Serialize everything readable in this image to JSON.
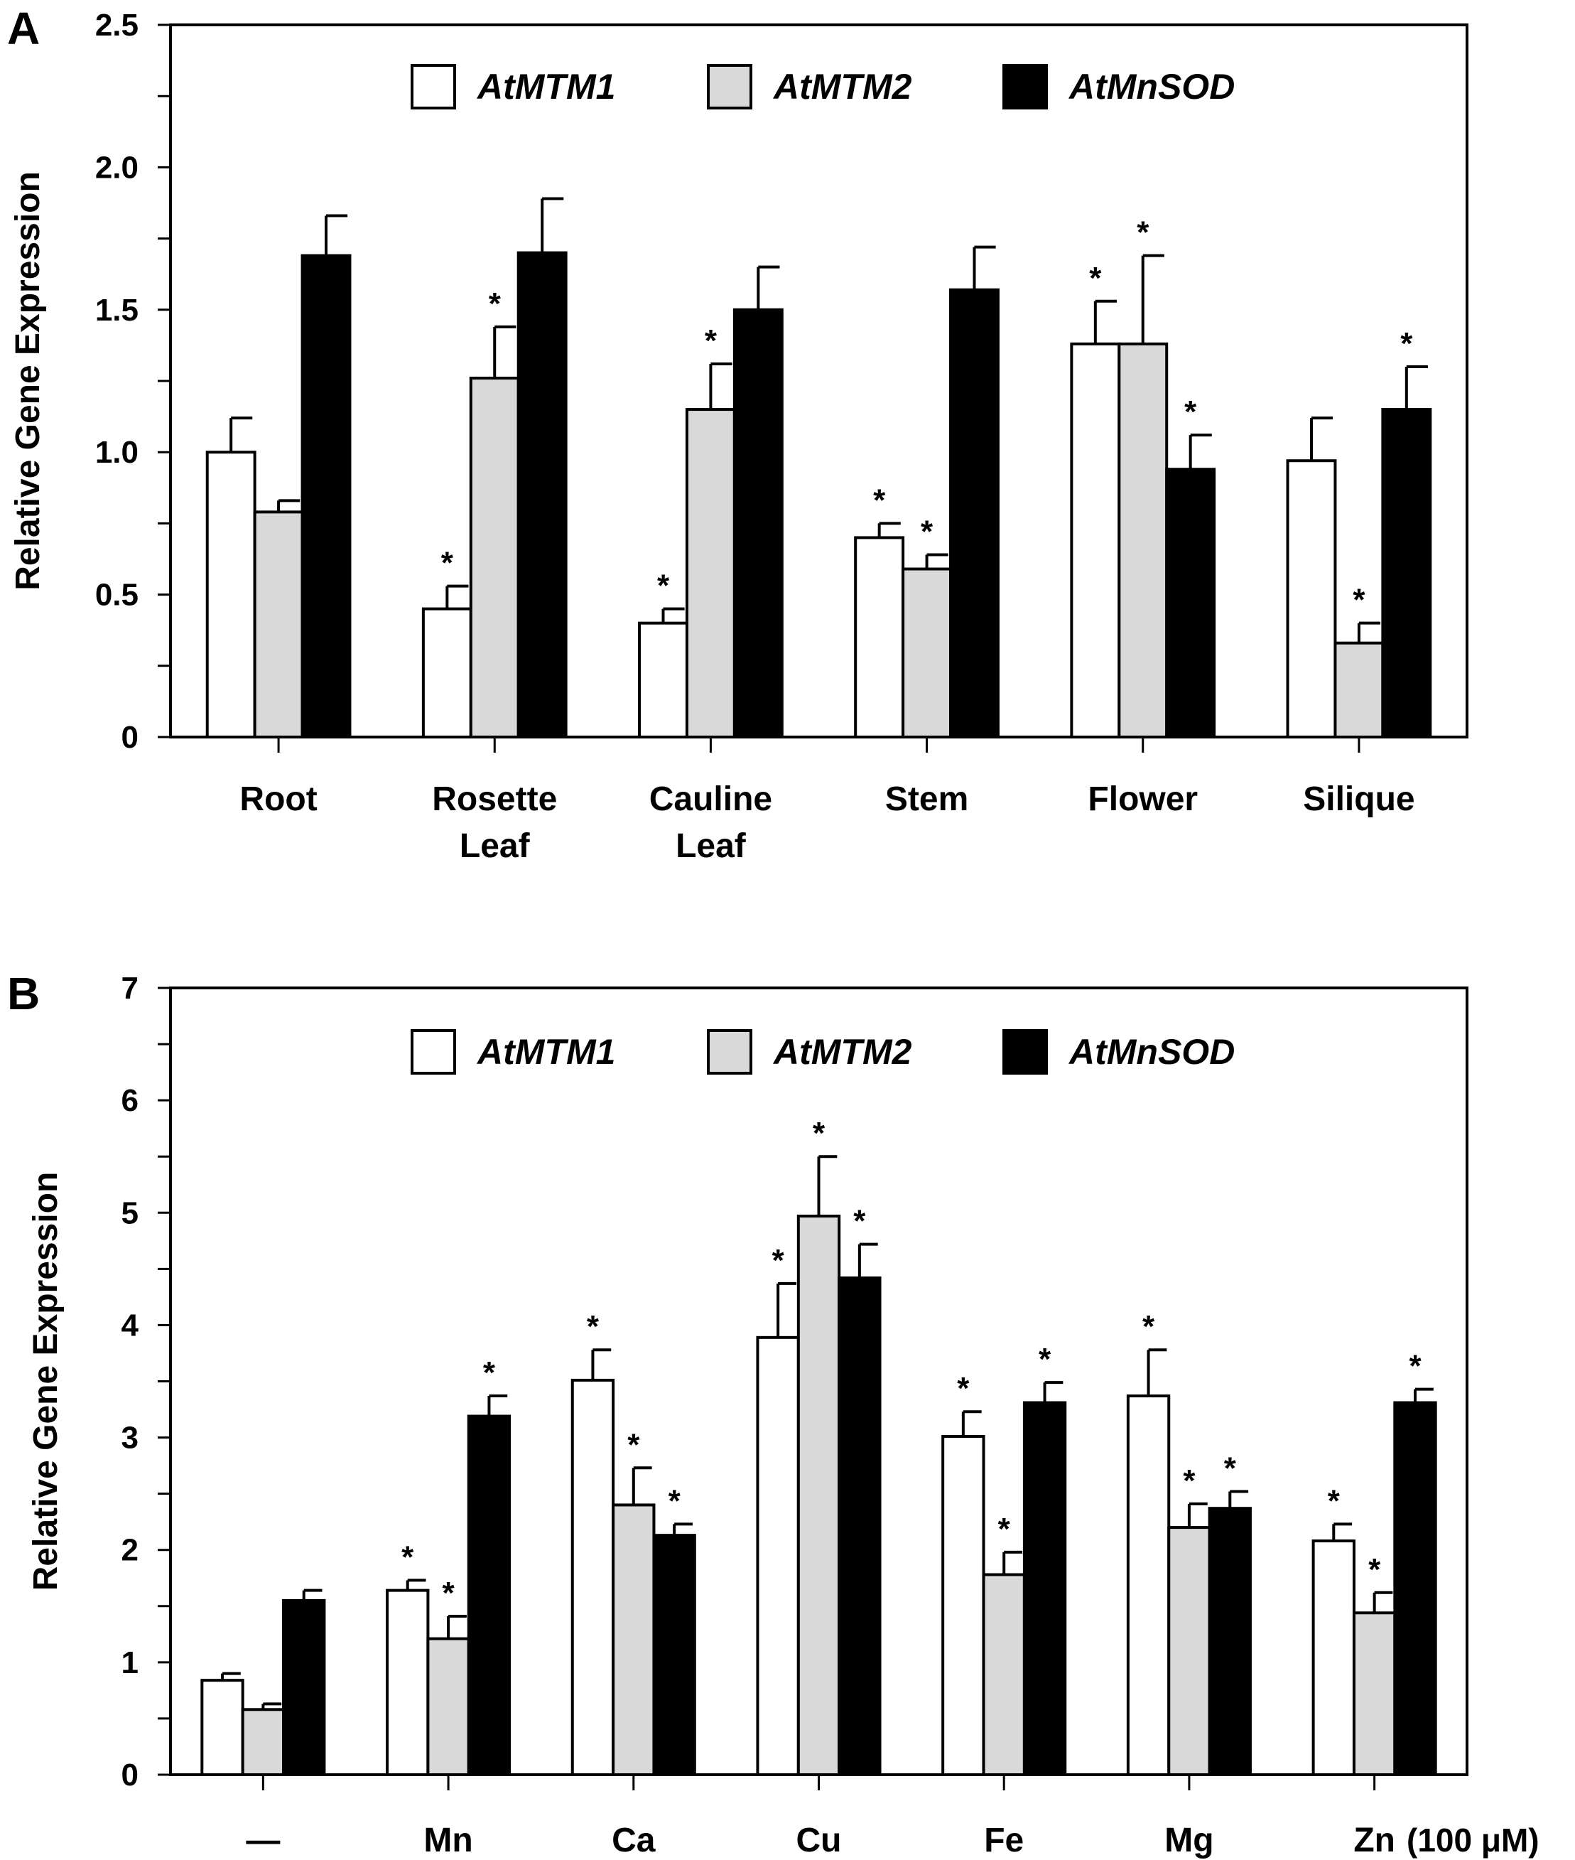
{
  "chart_data": [
    {
      "type": "bar",
      "panel": "A",
      "title": "",
      "xlabel": "",
      "ylabel": "Relative Gene Expression",
      "ylim": [
        0,
        2.5
      ],
      "yticks": [
        {
          "value": 0,
          "label": "0"
        },
        {
          "value": 0.5,
          "label": "0.5"
        },
        {
          "value": 1.0,
          "label": "1.0"
        },
        {
          "value": 1.5,
          "label": "1.5"
        },
        {
          "value": 2.0,
          "label": "2.0"
        },
        {
          "value": 2.5,
          "label": "2.5"
        }
      ],
      "minor_step": 0.25,
      "categories": [
        [
          "Root"
        ],
        [
          "Rosette",
          "Leaf"
        ],
        [
          "Cauline",
          "Leaf"
        ],
        [
          "Stem"
        ],
        [
          "Flower"
        ],
        [
          "Silique"
        ]
      ],
      "legend_placement": "top-center",
      "series": [
        {
          "name": "AtMTM1",
          "color": "#ffffff",
          "values": [
            1.0,
            0.45,
            0.4,
            0.7,
            1.38,
            0.97
          ],
          "errors": [
            0.12,
            0.08,
            0.05,
            0.05,
            0.15,
            0.15
          ],
          "significant": [
            false,
            true,
            true,
            true,
            true,
            false
          ]
        },
        {
          "name": "AtMTM2",
          "color": "#d9d9d9",
          "values": [
            0.79,
            1.26,
            1.15,
            0.59,
            1.38,
            0.33
          ],
          "errors": [
            0.04,
            0.18,
            0.16,
            0.05,
            0.31,
            0.07
          ],
          "significant": [
            false,
            true,
            true,
            true,
            true,
            true
          ]
        },
        {
          "name": "AtMnSOD",
          "color": "#000000",
          "values": [
            1.69,
            1.7,
            1.5,
            1.57,
            0.94,
            1.15
          ],
          "errors": [
            0.14,
            0.19,
            0.15,
            0.15,
            0.12,
            0.15
          ],
          "significant": [
            false,
            false,
            false,
            false,
            true,
            true
          ]
        }
      ]
    },
    {
      "type": "bar",
      "panel": "B",
      "title": "",
      "xlabel": "",
      "ylabel": "Relative Gene Expression",
      "ylim": [
        0,
        7
      ],
      "yticks": [
        {
          "value": 0,
          "label": "0"
        },
        {
          "value": 1,
          "label": "1"
        },
        {
          "value": 2,
          "label": "2"
        },
        {
          "value": 3,
          "label": "3"
        },
        {
          "value": 4,
          "label": "4"
        },
        {
          "value": 5,
          "label": "5"
        },
        {
          "value": 6,
          "label": "6"
        },
        {
          "value": 7,
          "label": "7"
        }
      ],
      "minor_step": 0.5,
      "categories": [
        [
          "—"
        ],
        [
          "Mn"
        ],
        [
          "Ca"
        ],
        [
          "Cu"
        ],
        [
          "Fe"
        ],
        [
          "Mg"
        ],
        [
          "Zn"
        ]
      ],
      "unit_label": "(100 μM)",
      "legend_placement": "top-center",
      "series": [
        {
          "name": "AtMTM1",
          "color": "#ffffff",
          "values": [
            0.84,
            1.64,
            3.51,
            3.89,
            3.01,
            3.37,
            2.08
          ],
          "errors": [
            0.06,
            0.09,
            0.27,
            0.48,
            0.22,
            0.41,
            0.15
          ],
          "significant": [
            false,
            true,
            true,
            true,
            true,
            true,
            true
          ]
        },
        {
          "name": "AtMTM2",
          "color": "#d9d9d9",
          "values": [
            0.58,
            1.21,
            2.4,
            4.97,
            1.78,
            2.2,
            1.44
          ],
          "errors": [
            0.05,
            0.2,
            0.33,
            0.53,
            0.2,
            0.21,
            0.18
          ],
          "significant": [
            false,
            true,
            true,
            true,
            true,
            true,
            true
          ]
        },
        {
          "name": "AtMnSOD",
          "color": "#000000",
          "values": [
            1.55,
            3.19,
            2.13,
            4.42,
            3.31,
            2.37,
            3.31
          ],
          "errors": [
            0.09,
            0.18,
            0.1,
            0.3,
            0.18,
            0.15,
            0.12
          ],
          "significant": [
            false,
            true,
            true,
            true,
            true,
            true,
            true
          ]
        }
      ]
    }
  ]
}
